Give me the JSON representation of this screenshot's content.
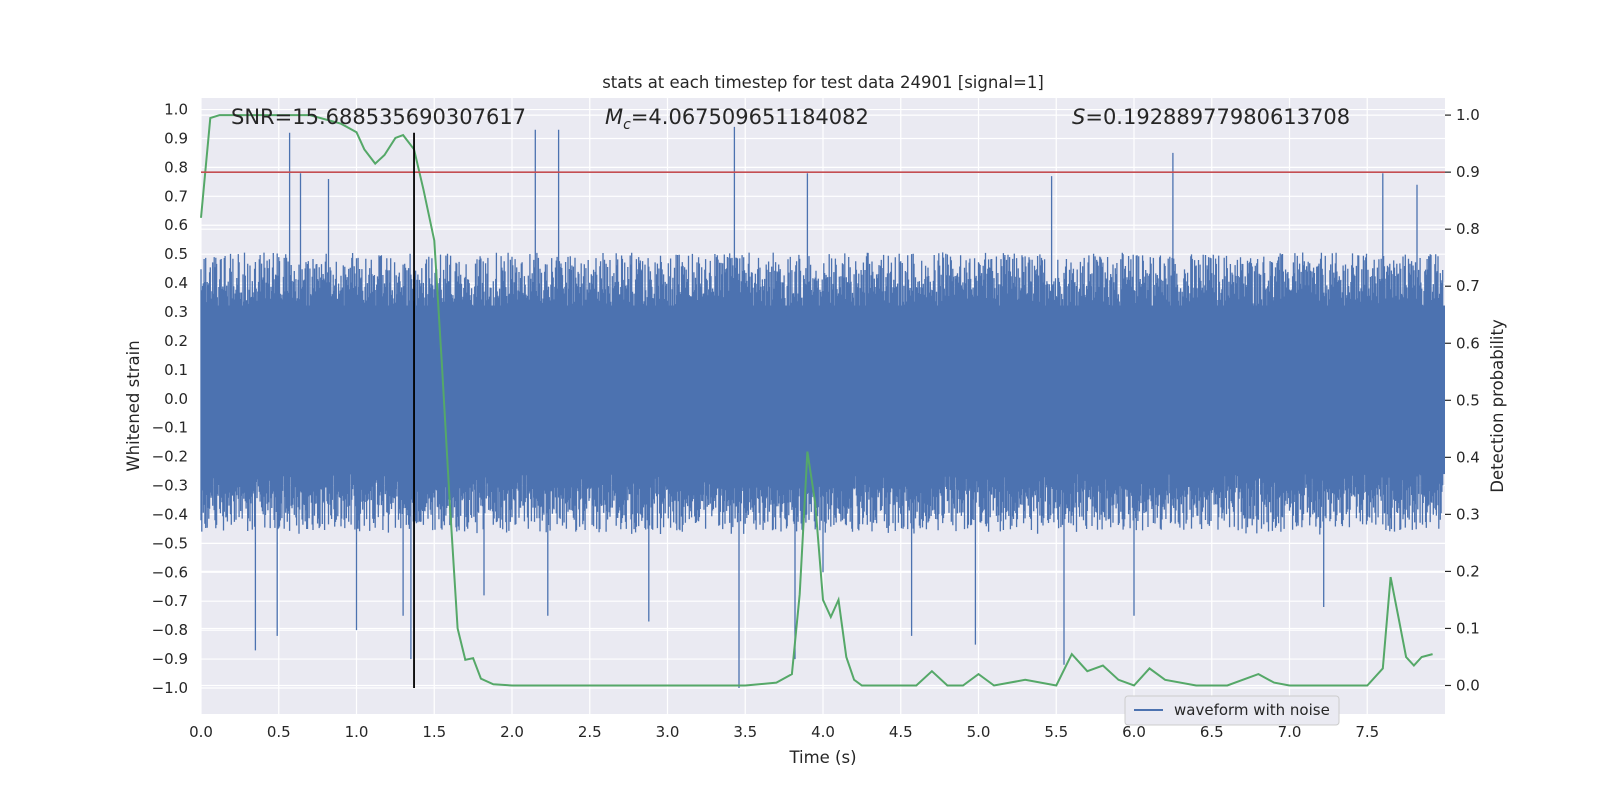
{
  "chart_data": {
    "type": "line",
    "title": "stats at each timestep for test data 24901 [signal=1]",
    "xlabel": "Time (s)",
    "ylabel": "Whitened strain",
    "ylabel_right": "Detection probability",
    "xlim": [
      0.0,
      8.0
    ],
    "ylim": [
      -1.09,
      1.04
    ],
    "ylim_right": [
      -0.05,
      1.03
    ],
    "x_ticks": [
      "0.0",
      "0.5",
      "1.0",
      "1.5",
      "2.0",
      "2.5",
      "3.0",
      "3.5",
      "4.0",
      "4.5",
      "5.0",
      "5.5",
      "6.0",
      "6.5",
      "7.0",
      "7.5"
    ],
    "x_tick_values": [
      0.0,
      0.5,
      1.0,
      1.5,
      2.0,
      2.5,
      3.0,
      3.5,
      4.0,
      4.5,
      5.0,
      5.5,
      6.0,
      6.5,
      7.0,
      7.5
    ],
    "y_ticks": [
      "1.0",
      "0.9",
      "0.8",
      "0.7",
      "0.6",
      "0.5",
      "0.4",
      "0.3",
      "0.2",
      "0.1",
      "0.0",
      "-0.1",
      "-0.2",
      "-0.3",
      "-0.4",
      "-0.5",
      "-0.6",
      "-0.7",
      "-0.8",
      "-0.9",
      "-1.0"
    ],
    "y_tick_values": [
      1.0,
      0.9,
      0.8,
      0.7,
      0.6,
      0.5,
      0.4,
      0.3,
      0.2,
      0.1,
      0.0,
      -0.1,
      -0.2,
      -0.3,
      -0.4,
      -0.5,
      -0.6,
      -0.7,
      -0.8,
      -0.9,
      -1.0
    ],
    "y_right_ticks": [
      "1.0",
      "0.9",
      "0.8",
      "0.7",
      "0.6",
      "0.5",
      "0.4",
      "0.3",
      "0.2",
      "0.1",
      "0.0"
    ],
    "y_right_tick_values": [
      1.0,
      0.9,
      0.8,
      0.7,
      0.6,
      0.5,
      0.4,
      0.3,
      0.2,
      0.1,
      0.0
    ],
    "annotations": {
      "snr": "SNR=15.688535690307617",
      "mc_symbol": "M",
      "mc_subscript": "c",
      "mc_value": "=4.067509651184082",
      "s_symbol": "S",
      "s_value": "=0.19288977980613708"
    },
    "threshold_right": 0.9,
    "marker_time": 1.37,
    "series": [
      {
        "name": "waveform with noise",
        "axis": "left",
        "color": "#4c72b0",
        "envelope_core": [
          -0.42,
          0.52
        ],
        "spikes": [
          {
            "t": 0.35,
            "v": -0.87
          },
          {
            "t": 0.49,
            "v": -0.82
          },
          {
            "t": 0.57,
            "v": 0.92
          },
          {
            "t": 0.64,
            "v": 0.78
          },
          {
            "t": 0.82,
            "v": 0.76
          },
          {
            "t": 1.0,
            "v": -0.8
          },
          {
            "t": 1.3,
            "v": -0.75
          },
          {
            "t": 1.35,
            "v": -0.9
          },
          {
            "t": 1.82,
            "v": -0.68
          },
          {
            "t": 2.15,
            "v": 0.93
          },
          {
            "t": 2.3,
            "v": 0.93
          },
          {
            "t": 2.23,
            "v": -0.75
          },
          {
            "t": 2.88,
            "v": -0.77
          },
          {
            "t": 3.43,
            "v": 0.94
          },
          {
            "t": 3.46,
            "v": -1.0
          },
          {
            "t": 3.82,
            "v": -0.9
          },
          {
            "t": 3.9,
            "v": 0.78
          },
          {
            "t": 4.0,
            "v": -0.6
          },
          {
            "t": 4.57,
            "v": -0.82
          },
          {
            "t": 4.98,
            "v": -0.85
          },
          {
            "t": 5.47,
            "v": 0.77
          },
          {
            "t": 5.55,
            "v": -0.92
          },
          {
            "t": 6.0,
            "v": -0.75
          },
          {
            "t": 6.25,
            "v": 0.85
          },
          {
            "t": 7.22,
            "v": -0.72
          },
          {
            "t": 7.6,
            "v": 0.78
          },
          {
            "t": 7.82,
            "v": 0.74
          }
        ]
      },
      {
        "name": "detection probability",
        "axis": "right",
        "color": "#55a868",
        "x": [
          0.0,
          0.06,
          0.12,
          0.2,
          0.35,
          0.5,
          0.7,
          0.9,
          1.0,
          1.05,
          1.12,
          1.18,
          1.25,
          1.3,
          1.37,
          1.43,
          1.5,
          1.55,
          1.6,
          1.65,
          1.7,
          1.75,
          1.8,
          1.88,
          2.0,
          2.3,
          2.5,
          2.8,
          3.0,
          3.2,
          3.5,
          3.7,
          3.8,
          3.85,
          3.9,
          3.95,
          4.0,
          4.05,
          4.1,
          4.15,
          4.2,
          4.25,
          4.3,
          4.4,
          4.6,
          4.7,
          4.8,
          4.9,
          5.0,
          5.1,
          5.3,
          5.5,
          5.6,
          5.65,
          5.7,
          5.8,
          5.9,
          6.0,
          6.1,
          6.2,
          6.4,
          6.6,
          6.8,
          6.9,
          7.0,
          7.1,
          7.3,
          7.5,
          7.6,
          7.65,
          7.7,
          7.75,
          7.8,
          7.85,
          7.92
        ],
        "y": [
          0.82,
          0.995,
          1.0,
          1.0,
          1.0,
          1.0,
          1.0,
          0.985,
          0.97,
          0.94,
          0.915,
          0.93,
          0.96,
          0.965,
          0.94,
          0.87,
          0.78,
          0.56,
          0.32,
          0.1,
          0.045,
          0.048,
          0.012,
          0.002,
          0.0,
          0.0,
          0.0,
          0.0,
          0.0,
          0.0,
          0.0,
          0.005,
          0.02,
          0.16,
          0.41,
          0.32,
          0.15,
          0.12,
          0.15,
          0.05,
          0.01,
          0.0,
          0.0,
          0.0,
          0.0,
          0.025,
          0.0,
          0.0,
          0.02,
          0.0,
          0.01,
          0.0,
          0.055,
          0.04,
          0.025,
          0.035,
          0.01,
          0.0,
          0.03,
          0.01,
          0.0,
          0.0,
          0.02,
          0.005,
          0.0,
          0.0,
          0.0,
          0.0,
          0.03,
          0.19,
          0.12,
          0.05,
          0.035,
          0.05,
          0.055
        ]
      }
    ],
    "legend": {
      "label": "waveform with noise",
      "placement": "lower-right"
    }
  }
}
